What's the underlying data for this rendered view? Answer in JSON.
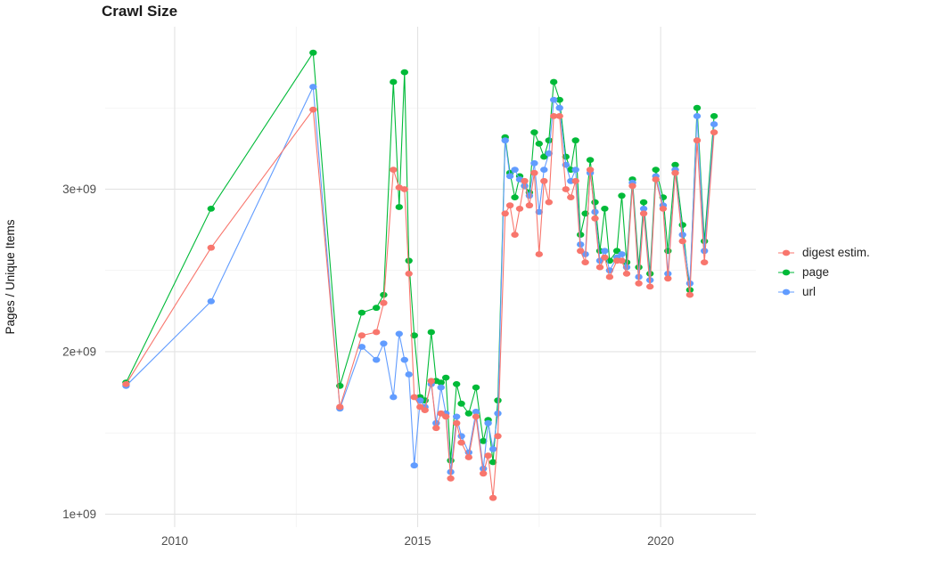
{
  "chart_data": {
    "type": "line",
    "title": "Crawl Size",
    "xlabel": "",
    "ylabel": "Pages / Unique Items",
    "value_scale": "1e9",
    "grid": true,
    "legend_position": "right",
    "x_range": [
      2008.57,
      2021.96
    ],
    "y_range": [
      0.92,
      4.0
    ],
    "x_ticks": [
      {
        "value": 2010,
        "label": "2010"
      },
      {
        "value": 2015,
        "label": "2015"
      },
      {
        "value": 2020,
        "label": "2020"
      }
    ],
    "y_ticks": [
      {
        "value": 1,
        "label": "1e+09"
      },
      {
        "value": 2,
        "label": "2e+09"
      },
      {
        "value": 3,
        "label": "3e+09"
      }
    ],
    "x_minor_ticks": [
      2012.5,
      2017.5
    ],
    "y_minor_ticks": [
      1.5,
      2.5,
      3.5
    ],
    "x": [
      2009.0,
      2010.75,
      2012.85,
      2013.4,
      2013.85,
      2014.15,
      2014.3,
      2014.5,
      2014.62,
      2014.73,
      2014.82,
      2014.93,
      2015.05,
      2015.15,
      2015.28,
      2015.38,
      2015.48,
      2015.58,
      2015.68,
      2015.8,
      2015.9,
      2016.05,
      2016.2,
      2016.35,
      2016.45,
      2016.55,
      2016.65,
      2016.8,
      2016.9,
      2017.0,
      2017.1,
      2017.2,
      2017.3,
      2017.4,
      2017.5,
      2017.6,
      2017.7,
      2017.8,
      2017.92,
      2018.05,
      2018.15,
      2018.25,
      2018.35,
      2018.45,
      2018.55,
      2018.65,
      2018.75,
      2018.85,
      2018.95,
      2019.1,
      2019.2,
      2019.3,
      2019.42,
      2019.55,
      2019.65,
      2019.78,
      2019.9,
      2020.05,
      2020.15,
      2020.3,
      2020.45,
      2020.6,
      2020.75,
      2020.9,
      2021.1
    ],
    "series": [
      {
        "name": "digest estim.",
        "color": "#F8766D",
        "values": [
          1.8,
          2.64,
          3.49,
          1.66,
          2.1,
          2.12,
          2.3,
          3.12,
          3.01,
          3.0,
          2.48,
          1.72,
          1.66,
          1.64,
          1.82,
          1.53,
          1.62,
          1.6,
          1.22,
          1.56,
          1.44,
          1.35,
          1.6,
          1.25,
          1.36,
          1.1,
          1.48,
          2.85,
          2.9,
          2.72,
          2.88,
          3.05,
          2.9,
          3.1,
          2.6,
          3.05,
          2.92,
          3.45,
          3.45,
          3.0,
          2.95,
          3.05,
          2.62,
          2.55,
          3.12,
          2.82,
          2.52,
          2.58,
          2.46,
          2.56,
          2.56,
          2.48,
          3.02,
          2.42,
          2.85,
          2.4,
          3.06,
          2.88,
          2.45,
          3.1,
          2.68,
          2.35,
          3.3,
          2.55,
          3.35
        ]
      },
      {
        "name": "page",
        "color": "#00BA38",
        "values": [
          1.81,
          2.88,
          3.84,
          1.79,
          2.24,
          2.27,
          2.35,
          3.66,
          2.89,
          3.72,
          2.56,
          2.1,
          1.72,
          1.7,
          2.12,
          1.82,
          1.81,
          1.84,
          1.33,
          1.8,
          1.68,
          1.62,
          1.78,
          1.45,
          1.58,
          1.32,
          1.7,
          3.32,
          3.1,
          2.95,
          3.08,
          3.02,
          2.98,
          3.35,
          3.28,
          3.2,
          3.3,
          3.66,
          3.55,
          3.2,
          3.12,
          3.3,
          2.72,
          2.85,
          3.18,
          2.92,
          2.62,
          2.88,
          2.56,
          2.62,
          2.96,
          2.55,
          3.06,
          2.52,
          2.92,
          2.48,
          3.12,
          2.95,
          2.62,
          3.15,
          2.78,
          2.38,
          3.5,
          2.68,
          3.45
        ]
      },
      {
        "name": "url",
        "color": "#619CFF",
        "values": [
          1.79,
          2.31,
          3.63,
          1.65,
          2.03,
          1.95,
          2.05,
          1.72,
          2.11,
          1.95,
          1.86,
          1.3,
          1.7,
          1.66,
          1.8,
          1.56,
          1.78,
          1.62,
          1.26,
          1.6,
          1.48,
          1.38,
          1.63,
          1.28,
          1.56,
          1.4,
          1.62,
          3.3,
          3.08,
          3.12,
          3.06,
          3.02,
          2.96,
          3.16,
          2.86,
          3.12,
          3.22,
          3.55,
          3.5,
          3.15,
          3.05,
          3.12,
          2.66,
          2.6,
          3.1,
          2.86,
          2.56,
          2.62,
          2.5,
          2.58,
          2.6,
          2.52,
          3.04,
          2.46,
          2.88,
          2.44,
          3.08,
          2.9,
          2.48,
          3.12,
          2.72,
          2.42,
          3.45,
          2.62,
          3.4
        ]
      }
    ]
  }
}
